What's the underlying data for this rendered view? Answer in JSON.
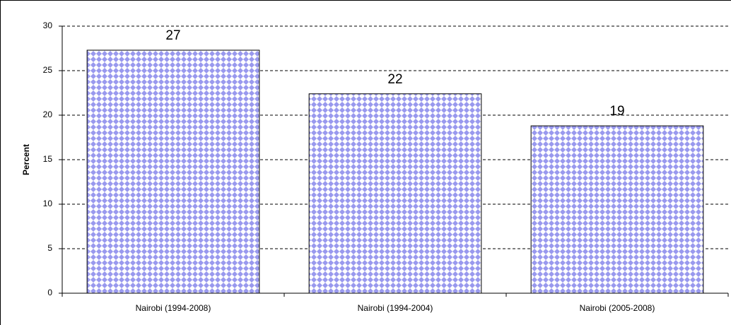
{
  "chart_data": {
    "type": "bar",
    "y_label": "Percent",
    "categories": [
      "Nairobi (1994-2008)",
      "Nairobi (1994-2004)",
      "Nairobi (2005-2008)"
    ],
    "values": [
      27.3,
      22.4,
      18.8
    ],
    "value_labels": [
      "27",
      "22",
      "19"
    ],
    "color": "#9999ee",
    "ylim": [
      0,
      30
    ],
    "yticks": [
      0,
      5,
      10,
      15,
      20,
      25,
      30
    ],
    "grid": true
  }
}
